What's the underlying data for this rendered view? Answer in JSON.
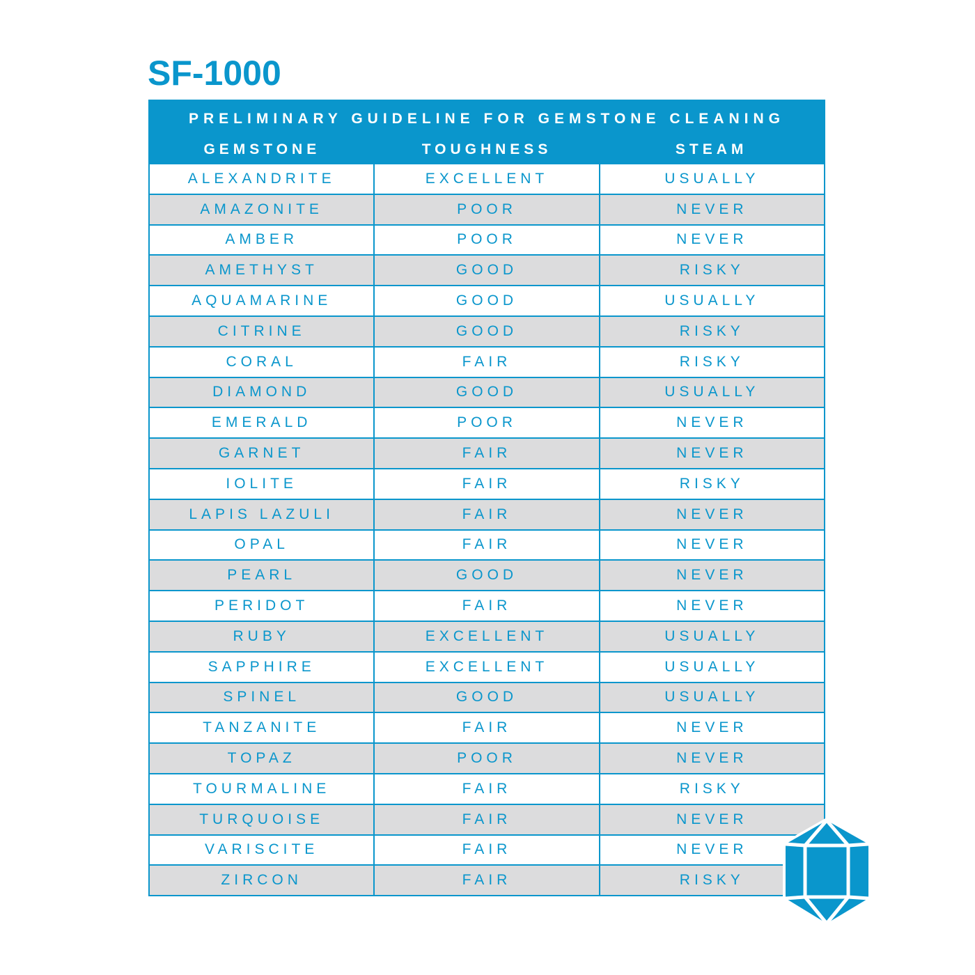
{
  "title": "SF-1000",
  "table": {
    "caption": "PRELIMINARY GUIDELINE FOR GEMSTONE CLEANING",
    "columns": [
      "GEMSTONE",
      "TOUGHNESS",
      "STEAM"
    ],
    "rows": [
      [
        "ALEXANDRITE",
        "EXCELLENT",
        "USUALLY"
      ],
      [
        "AMAZONITE",
        "POOR",
        "NEVER"
      ],
      [
        "AMBER",
        "POOR",
        "NEVER"
      ],
      [
        "AMETHYST",
        "GOOD",
        "RISKY"
      ],
      [
        "AQUAMARINE",
        "GOOD",
        "USUALLY"
      ],
      [
        "CITRINE",
        "GOOD",
        "RISKY"
      ],
      [
        "CORAL",
        "FAIR",
        "RISKY"
      ],
      [
        "DIAMOND",
        "GOOD",
        "USUALLY"
      ],
      [
        "EMERALD",
        "POOR",
        "NEVER"
      ],
      [
        "GARNET",
        "FAIR",
        "NEVER"
      ],
      [
        "IOLITE",
        "FAIR",
        "RISKY"
      ],
      [
        "LAPIS LAZULI",
        "FAIR",
        "NEVER"
      ],
      [
        "OPAL",
        "FAIR",
        "NEVER"
      ],
      [
        "PEARL",
        "GOOD",
        "NEVER"
      ],
      [
        "PERIDOT",
        "FAIR",
        "NEVER"
      ],
      [
        "RUBY",
        "EXCELLENT",
        "USUALLY"
      ],
      [
        "SAPPHIRE",
        "EXCELLENT",
        "USUALLY"
      ],
      [
        "SPINEL",
        "GOOD",
        "USUALLY"
      ],
      [
        "TANZANITE",
        "FAIR",
        "NEVER"
      ],
      [
        "TOPAZ",
        "POOR",
        "NEVER"
      ],
      [
        "TOURMALINE",
        "FAIR",
        "RISKY"
      ],
      [
        "TURQUOISE",
        "FAIR",
        "NEVER"
      ],
      [
        "VARISCITE",
        "FAIR",
        "NEVER"
      ],
      [
        "ZIRCON",
        "FAIR",
        "RISKY"
      ]
    ]
  },
  "colors": {
    "accent": "#0a96cc",
    "alt_row": "#dcdcdd"
  },
  "icon": "gemstone-icon"
}
